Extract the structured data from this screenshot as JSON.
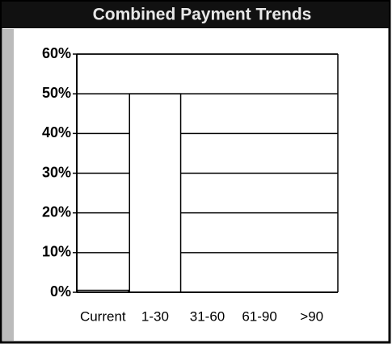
{
  "chart_data": {
    "type": "bar",
    "title": "Combined Payment Trends",
    "categories": [
      "Current",
      "1-30",
      "31-60",
      "61-90",
      ">90"
    ],
    "values": [
      0.5,
      50,
      0,
      0,
      0
    ],
    "color": "#ffffff",
    "ylim": [
      0,
      60
    ],
    "yticks": [
      {
        "value": 0,
        "label": "0%"
      },
      {
        "value": 10,
        "label": "10%"
      },
      {
        "value": 20,
        "label": "20%"
      },
      {
        "value": 30,
        "label": "30%"
      },
      {
        "value": 40,
        "label": "40%"
      },
      {
        "value": 50,
        "label": "50%"
      },
      {
        "value": 60,
        "label": "60%"
      }
    ],
    "grid": true
  }
}
